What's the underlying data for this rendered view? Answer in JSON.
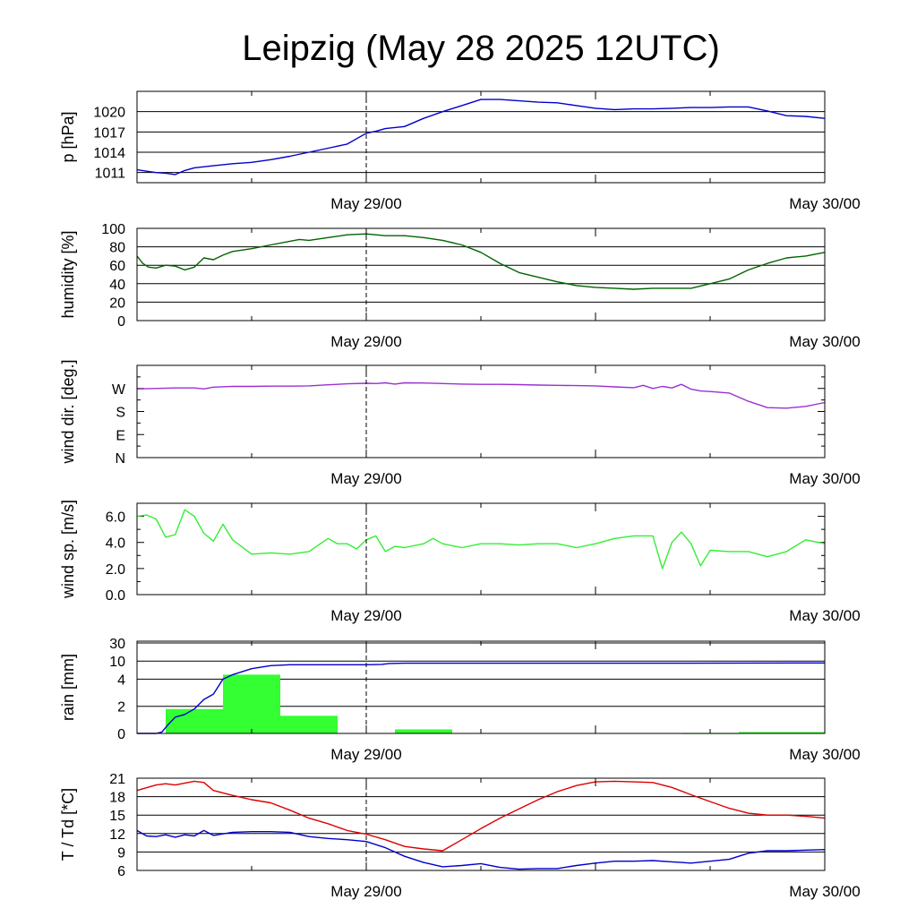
{
  "title": "Leipzig (May 28 2025 12UTC)",
  "x_labels": [
    "May 29/00",
    "May 30/00"
  ],
  "chart_data": [
    {
      "type": "line",
      "id": "pressure",
      "ylabel": "p [hPa]",
      "ylim": [
        1009.5,
        1023
      ],
      "yticks": [
        1011,
        1014,
        1017,
        1020
      ],
      "ytick_labels": [
        "1011",
        "1014",
        "1017",
        "1020"
      ],
      "grid": true,
      "xlim_hours": [
        0,
        36
      ],
      "series": [
        {
          "color": "#0000cc",
          "x": [
            0,
            0.5,
            1,
            1.5,
            2,
            2.5,
            3,
            4,
            5,
            6,
            7,
            8,
            9,
            10,
            11,
            12,
            12.5,
            13,
            14,
            15,
            16,
            17,
            18,
            19,
            20,
            21,
            22,
            23,
            24,
            25,
            26,
            27,
            28,
            29,
            30,
            31,
            32,
            33,
            34,
            35,
            36
          ],
          "y": [
            1011.4,
            1011.2,
            1011,
            1010.9,
            1010.7,
            1011.3,
            1011.7,
            1012,
            1012.3,
            1012.5,
            1012.9,
            1013.4,
            1014,
            1014.6,
            1015.2,
            1016.8,
            1017.1,
            1017.5,
            1017.8,
            1019,
            1020,
            1020.9,
            1021.8,
            1021.8,
            1021.6,
            1021.4,
            1021.3,
            1020.9,
            1020.5,
            1020.3,
            1020.4,
            1020.4,
            1020.5,
            1020.6,
            1020.6,
            1020.7,
            1020.7,
            1020.1,
            1019.4,
            1019.3,
            1019
          ]
        }
      ]
    },
    {
      "type": "line",
      "id": "humidity",
      "ylabel": "humidity [%]",
      "ylim": [
        0,
        100
      ],
      "yticks": [
        0,
        20,
        40,
        60,
        80,
        100
      ],
      "ytick_labels": [
        "0",
        "20",
        "40",
        "60",
        "80",
        "100"
      ],
      "grid": true,
      "xlim_hours": [
        0,
        36
      ],
      "series": [
        {
          "color": "#006400",
          "x": [
            0,
            0.3,
            0.6,
            1,
            1.5,
            2,
            2.5,
            3,
            3.5,
            4,
            4.5,
            5,
            6,
            7,
            8,
            8.5,
            9,
            10,
            11,
            12,
            13,
            14,
            15,
            16,
            17,
            18,
            19,
            20,
            21,
            22,
            23,
            24,
            25,
            26,
            27,
            28,
            29,
            30,
            31,
            32,
            33,
            34,
            35,
            36
          ],
          "y": [
            70,
            62,
            58,
            57,
            60,
            59,
            55,
            58,
            68,
            66,
            71,
            75,
            78,
            82,
            86,
            88,
            87,
            90,
            93,
            94,
            92,
            92,
            90,
            87,
            82,
            74,
            62,
            52,
            47,
            42,
            38,
            36,
            35,
            34,
            35,
            35,
            35,
            40,
            45,
            55,
            62,
            68,
            70,
            74
          ]
        }
      ]
    },
    {
      "type": "line",
      "id": "wind_direction",
      "ylabel": "wind dir. [deg.]",
      "ylim": [
        0,
        360
      ],
      "yticks": [
        0,
        90,
        180,
        270
      ],
      "ytick_labels": [
        "N",
        "E",
        "S",
        "W"
      ],
      "grid": false,
      "xlim_hours": [
        0,
        36
      ],
      "series": [
        {
          "color": "#9b30d0",
          "x": [
            0,
            1,
            2,
            3,
            3.5,
            4,
            5,
            6,
            7,
            8,
            9,
            10,
            11,
            12,
            12.5,
            13,
            13.5,
            14,
            15,
            16,
            17,
            18,
            19,
            20,
            21,
            22,
            23,
            24,
            25,
            26,
            26.5,
            27,
            27.5,
            28,
            28.5,
            29,
            29.5,
            30,
            31,
            32,
            33,
            34,
            35,
            36
          ],
          "y": [
            268,
            270,
            272,
            272,
            268,
            275,
            278,
            278,
            279,
            279,
            280,
            284,
            288,
            290,
            289,
            292,
            287,
            292,
            291,
            289,
            287,
            286,
            286,
            285,
            283,
            282,
            281,
            280,
            276,
            273,
            282,
            270,
            278,
            272,
            286,
            267,
            260,
            258,
            252,
            220,
            195,
            193,
            200,
            215
          ]
        }
      ]
    },
    {
      "type": "line",
      "id": "wind_speed",
      "ylabel": "wind sp. [m/s]",
      "ylim": [
        0,
        7
      ],
      "yticks": [
        0,
        2,
        4,
        6
      ],
      "ytick_labels": [
        "0.0",
        "2.0",
        "4.0",
        "6.0"
      ],
      "grid": false,
      "xlim_hours": [
        0,
        36
      ],
      "series": [
        {
          "color": "#33ee33",
          "x": [
            0,
            0.5,
            1,
            1.5,
            2,
            2.5,
            3,
            3.5,
            4,
            4.5,
            5,
            6,
            7,
            8,
            9,
            10,
            10.5,
            11,
            11.5,
            12,
            12.5,
            13,
            13.5,
            14,
            15,
            15.5,
            16,
            17,
            18,
            19,
            20,
            21,
            22,
            23,
            24,
            25,
            26,
            27,
            27.5,
            28,
            28.5,
            29,
            29.5,
            30,
            31,
            32,
            33,
            34,
            35,
            36
          ],
          "y": [
            6,
            6.1,
            5.8,
            4.4,
            4.6,
            6.5,
            6,
            4.7,
            4.1,
            5.4,
            4.2,
            3.1,
            3.2,
            3.1,
            3.3,
            4.3,
            3.9,
            3.9,
            3.5,
            4.2,
            4.5,
            3.3,
            3.7,
            3.6,
            3.9,
            4.3,
            3.9,
            3.6,
            3.9,
            3.9,
            3.8,
            3.9,
            3.9,
            3.6,
            3.9,
            4.3,
            4.5,
            4.5,
            2.0,
            4.0,
            4.8,
            3.9,
            2.2,
            3.4,
            3.3,
            3.3,
            2.9,
            3.3,
            4.2,
            3.9
          ]
        }
      ]
    },
    {
      "type": "bar",
      "id": "rain",
      "ylabel": "rain [mm]",
      "yticks": [
        0,
        2,
        4,
        10,
        30
      ],
      "ytick_labels": [
        "0",
        "2",
        "4",
        "10",
        "30"
      ],
      "grid": true,
      "xlim_hours": [
        0,
        36
      ],
      "bars": {
        "color": "#33ff33",
        "bins_hours": [
          [
            1.5,
            4.5
          ],
          [
            4.5,
            7.5
          ],
          [
            7.5,
            10.5
          ],
          [
            13.5,
            16.5
          ],
          [
            28.5,
            31.5
          ],
          [
            31.5,
            36
          ]
        ],
        "values": [
          1.8,
          5.5,
          1.3,
          0.3,
          0.02,
          0.1
        ]
      },
      "series": [
        {
          "color": "#0000cc",
          "name_hint": "accumulated",
          "x": [
            0,
            0.5,
            1,
            1.3,
            1.6,
            2,
            2.5,
            3,
            3.5,
            4,
            4.5,
            5,
            6,
            7,
            8,
            9,
            10,
            11,
            12,
            12.8,
            13.2,
            14,
            16,
            20,
            24,
            28,
            32,
            36
          ],
          "y": [
            0,
            0,
            0,
            0.1,
            0.6,
            1.2,
            1.4,
            1.8,
            2.5,
            2.9,
            4.0,
            5.5,
            7.5,
            8.5,
            8.8,
            8.8,
            8.8,
            8.8,
            8.8,
            8.9,
            9.2,
            9.3,
            9.3,
            9.3,
            9.3,
            9.3,
            9.35,
            9.4
          ]
        }
      ]
    },
    {
      "type": "line",
      "id": "temperature",
      "ylabel": "T / Td [*C]",
      "ylim": [
        6,
        21
      ],
      "yticks": [
        6,
        9,
        12,
        15,
        18,
        21
      ],
      "ytick_labels": [
        "6",
        "9",
        "12",
        "15",
        "18",
        "21"
      ],
      "grid": true,
      "xlim_hours": [
        0,
        36
      ],
      "series": [
        {
          "color": "#dd0000",
          "x": [
            0,
            1,
            1.5,
            2,
            3,
            3.5,
            4,
            5,
            6,
            7,
            8,
            9,
            10,
            11,
            12,
            13,
            14,
            15,
            16,
            17,
            18,
            19,
            20,
            21,
            22,
            23,
            24,
            25,
            26,
            27,
            28,
            29,
            30,
            31,
            32,
            33,
            34,
            35,
            36
          ],
          "y": [
            19,
            19.9,
            20.1,
            19.9,
            20.5,
            20.3,
            19,
            18.2,
            17.5,
            17,
            15.8,
            14.5,
            13.6,
            12.5,
            11.9,
            11,
            9.9,
            9.5,
            9.2,
            11,
            12.8,
            14.5,
            16,
            17.5,
            18.8,
            19.8,
            20.4,
            20.5,
            20.4,
            20.3,
            19.5,
            18.3,
            17.2,
            16.1,
            15.3,
            15,
            15,
            14.8,
            14.5
          ]
        },
        {
          "color": "#0000cc",
          "x": [
            0,
            0.5,
            1,
            1.5,
            2,
            2.5,
            3,
            3.5,
            4,
            5,
            6,
            7,
            8,
            9,
            10,
            11,
            12,
            13,
            14,
            15,
            16,
            17,
            18,
            19,
            20,
            21,
            22,
            23,
            24,
            25,
            26,
            27,
            28,
            29,
            30,
            31,
            32,
            33,
            34,
            35,
            36
          ],
          "y": [
            12.5,
            11.6,
            11.5,
            11.8,
            11.4,
            11.8,
            11.6,
            12.5,
            11.7,
            12.2,
            12.3,
            12.3,
            12.2,
            11.5,
            11.2,
            11.0,
            10.7,
            9.7,
            8.3,
            7.3,
            6.6,
            6.8,
            7.1,
            6.5,
            6.2,
            6.3,
            6.3,
            6.8,
            7.2,
            7.5,
            7.5,
            7.6,
            7.4,
            7.2,
            7.5,
            7.8,
            8.8,
            9.2,
            9.2,
            9.3,
            9.4
          ]
        }
      ]
    }
  ]
}
